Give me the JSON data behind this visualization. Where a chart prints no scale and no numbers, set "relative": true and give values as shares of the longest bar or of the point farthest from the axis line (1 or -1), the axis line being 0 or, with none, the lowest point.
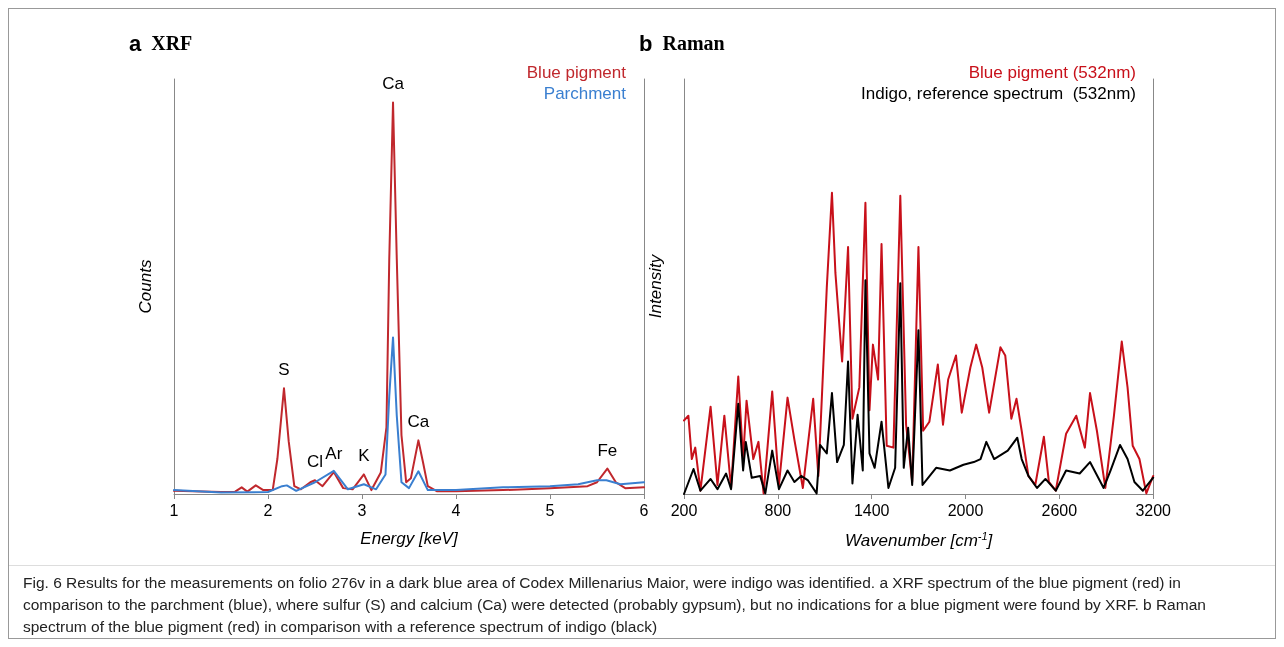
{
  "chart_data": [
    {
      "type": "line",
      "title": "XRF",
      "xlabel": "Energy [keV]",
      "ylabel": "Counts",
      "relative": true,
      "xlim": [
        1,
        6
      ],
      "xticks": [
        1,
        2,
        3,
        4,
        5,
        6
      ],
      "legend": "top right",
      "marker": "none",
      "line_style": "solid",
      "grid": false,
      "annotations": [
        "a",
        {
          "text": "Ca",
          "x": 3.33,
          "y": 1.0
        },
        {
          "text": "S",
          "x": 2.17,
          "y": 0.27
        },
        {
          "text": "Cl",
          "x": 2.5,
          "y": 0.035
        },
        {
          "text": "Ar",
          "x": 2.7,
          "y": 0.056
        },
        {
          "text": "K",
          "x": 3.02,
          "y": 0.05
        },
        {
          "text": "Ca",
          "x": 3.6,
          "y": 0.137
        },
        {
          "text": "Fe",
          "x": 5.61,
          "y": 0.065
        },
        "Fig. 6  Results for the measurements on folio 276v in a dark blue area of Codex Millenarius Maior, were indigo was identified. a XRF spectrum of the blue pigment (red) in comparison to the parchment (blue), where sulfur (S) and calcium (Ca) were detected (probably gypsum), but no indications for a blue pigment were found by XRF. b Raman spectrum of the blue pigment (red) in comparison with a reference spectrum of indigo (black)"
      ],
      "series": [
        {
          "name": "Blue pigment",
          "color": "#c0282d",
          "x": [
            1.0,
            1.5,
            1.65,
            1.72,
            1.78,
            1.87,
            1.95,
            2.05,
            2.1,
            2.17,
            2.22,
            2.28,
            2.35,
            2.45,
            2.5,
            2.58,
            2.7,
            2.8,
            2.9,
            3.02,
            3.1,
            3.2,
            3.26,
            3.29,
            3.33,
            3.37,
            3.42,
            3.47,
            3.52,
            3.6,
            3.65,
            3.7,
            3.8,
            4.0,
            4.5,
            5.0,
            5.4,
            5.5,
            5.61,
            5.7,
            5.8,
            6.0
          ],
          "values": [
            0.008,
            0.005,
            0.006,
            0.017,
            0.006,
            0.022,
            0.01,
            0.01,
            0.09,
            0.27,
            0.135,
            0.02,
            0.012,
            0.03,
            0.035,
            0.02,
            0.056,
            0.015,
            0.012,
            0.05,
            0.01,
            0.055,
            0.17,
            0.6,
            1.0,
            0.6,
            0.15,
            0.03,
            0.04,
            0.137,
            0.08,
            0.02,
            0.007,
            0.007,
            0.01,
            0.015,
            0.02,
            0.03,
            0.065,
            0.03,
            0.015,
            0.017
          ]
        },
        {
          "name": "Parchment",
          "color": "#3a7fd0",
          "x": [
            1.0,
            1.5,
            2.0,
            2.15,
            2.2,
            2.3,
            2.5,
            2.7,
            2.85,
            3.02,
            3.15,
            3.25,
            3.29,
            3.33,
            3.37,
            3.42,
            3.5,
            3.6,
            3.7,
            4.0,
            4.5,
            5.0,
            5.3,
            5.5,
            5.6,
            5.75,
            6.0
          ],
          "values": [
            0.01,
            0.004,
            0.005,
            0.02,
            0.022,
            0.008,
            0.03,
            0.059,
            0.012,
            0.025,
            0.012,
            0.05,
            0.25,
            0.4,
            0.2,
            0.03,
            0.015,
            0.058,
            0.01,
            0.01,
            0.017,
            0.02,
            0.025,
            0.035,
            0.035,
            0.025,
            0.03
          ]
        }
      ]
    },
    {
      "type": "line",
      "title": "Raman",
      "xlabel": "Wavenumber [cm$^{-1}$]",
      "ylabel": "Intensity",
      "relative": true,
      "xlim": [
        200,
        3200
      ],
      "xticks": [
        200,
        800,
        1400,
        2000,
        2600,
        3200
      ],
      "legend": "top right",
      "marker": "none",
      "line_style": "solid",
      "grid": false,
      "annotations": [
        "b"
      ],
      "series": [
        {
          "name": "Blue pigment (532nm)",
          "color": "#c8101a",
          "x": [
            200,
            228,
            250,
            272,
            305,
            370,
            414,
            458,
            501,
            547,
            578,
            600,
            643,
            676,
            709,
            764,
            807,
            862,
            906,
            960,
            1026,
            1059,
            1113,
            1146,
            1168,
            1211,
            1249,
            1277,
            1321,
            1360,
            1386,
            1408,
            1441,
            1463,
            1496,
            1539,
            1583,
            1620,
            1659,
            1699,
            1729,
            1769,
            1823,
            1856,
            1889,
            1939,
            1976,
            2031,
            2068,
            2107,
            2151,
            2223,
            2254,
            2293,
            2326,
            2359,
            2402,
            2446,
            2501,
            2533,
            2577,
            2643,
            2708,
            2763,
            2796,
            2840,
            2894,
            2949,
            2999,
            3036,
            3069,
            3112,
            3156,
            3200
          ],
          "values": [
            0.244,
            0.26,
            0.116,
            0.154,
            0.011,
            0.29,
            0.03,
            0.26,
            0.02,
            0.39,
            0.116,
            0.31,
            0.116,
            0.173,
            0.002,
            0.34,
            0.03,
            0.32,
            0.18,
            0.02,
            0.316,
            0.06,
            0.686,
            1.0,
            0.734,
            0.44,
            0.82,
            0.25,
            0.354,
            0.967,
            0.278,
            0.496,
            0.38,
            0.83,
            0.16,
            0.154,
            0.99,
            0.23,
            0.04,
            0.82,
            0.21,
            0.24,
            0.43,
            0.23,
            0.38,
            0.46,
            0.27,
            0.42,
            0.496,
            0.42,
            0.27,
            0.487,
            0.46,
            0.25,
            0.316,
            0.21,
            0.06,
            0.03,
            0.19,
            0.04,
            0.011,
            0.2,
            0.26,
            0.154,
            0.335,
            0.21,
            0.02,
            0.26,
            0.506,
            0.354,
            0.16,
            0.116,
            0.002,
            0.06
          ]
        },
        {
          "name": "Indigo, reference spectrum  (532nm)",
          "color": "#000000",
          "x": [
            200,
            261,
            305,
            370,
            414,
            469,
            501,
            547,
            578,
            595,
            633,
            687,
            720,
            764,
            807,
            862,
            906,
            949,
            993,
            1048,
            1070,
            1113,
            1146,
            1179,
            1222,
            1249,
            1277,
            1310,
            1343,
            1360,
            1386,
            1419,
            1463,
            1507,
            1550,
            1583,
            1605,
            1633,
            1659,
            1699,
            1725,
            1812,
            1900,
            1987,
            2053,
            2096,
            2133,
            2183,
            2270,
            2331,
            2359,
            2402,
            2457,
            2511,
            2577,
            2643,
            2730,
            2796,
            2883,
            2927,
            2988,
            3036,
            3080,
            3134,
            3200
          ],
          "values": [
            0.0,
            0.083,
            0.011,
            0.05,
            0.016,
            0.068,
            0.016,
            0.3,
            0.078,
            0.173,
            0.054,
            0.06,
            0.002,
            0.144,
            0.016,
            0.078,
            0.04,
            0.06,
            0.045,
            0.002,
            0.163,
            0.135,
            0.335,
            0.106,
            0.163,
            0.44,
            0.035,
            0.263,
            0.078,
            0.71,
            0.135,
            0.087,
            0.24,
            0.02,
            0.087,
            0.7,
            0.087,
            0.22,
            0.03,
            0.544,
            0.03,
            0.087,
            0.078,
            0.097,
            0.106,
            0.116,
            0.173,
            0.116,
            0.144,
            0.187,
            0.116,
            0.06,
            0.02,
            0.05,
            0.011,
            0.078,
            0.068,
            0.106,
            0.02,
            0.078,
            0.163,
            0.116,
            0.04,
            0.011,
            0.054
          ]
        }
      ]
    }
  ]
}
